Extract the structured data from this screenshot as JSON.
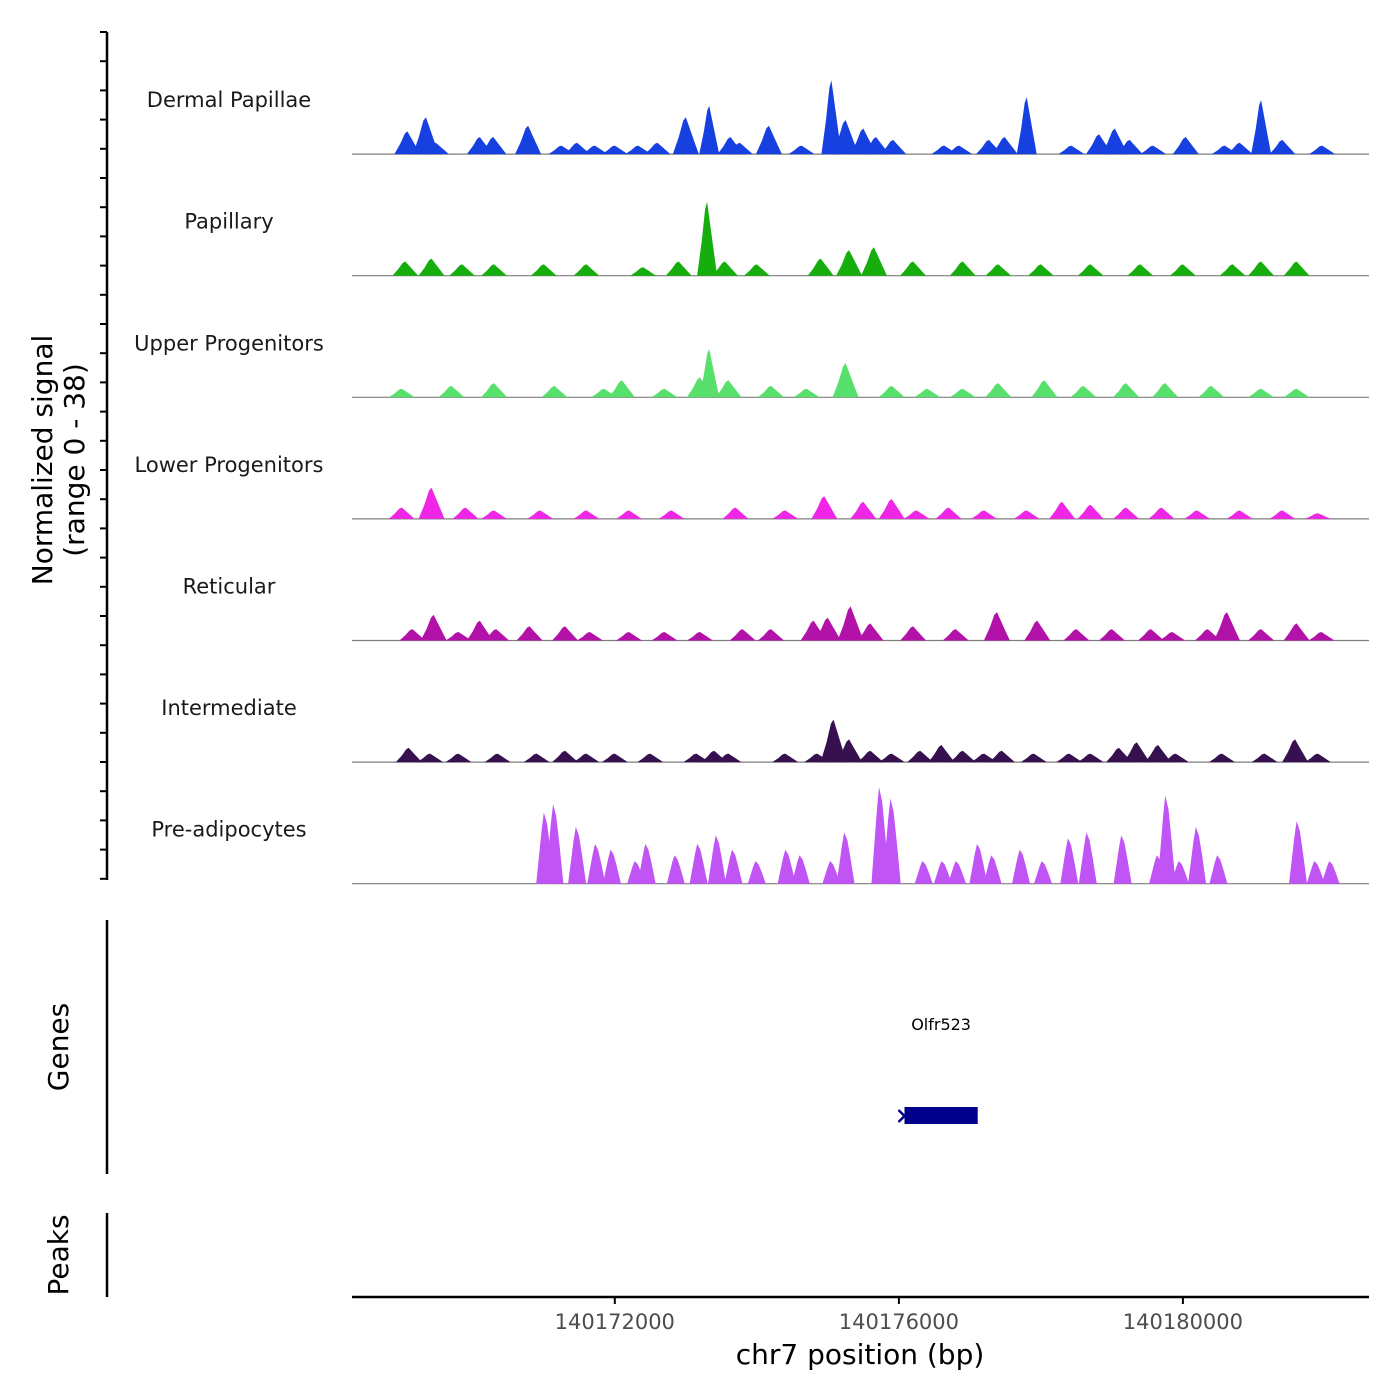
{
  "chart_data": {
    "type": "area",
    "chromosome": "chr7",
    "xlabel": "chr7 position (bp)",
    "ylabel_line1": "Normalized signal",
    "ylabel_line2": "(range 0 - 38)",
    "ylim": [
      0,
      38
    ],
    "xlim": [
      140168300,
      140182620
    ],
    "x_ticks": [
      140172000,
      140176000,
      140180000
    ],
    "x_tick_labels": [
      "140172000",
      "140176000",
      "140180000"
    ],
    "tracks": [
      {
        "name": "Dermal Papillae",
        "color": "#1640e0",
        "peaks": [
          [
            140169080,
            8
          ],
          [
            140169340,
            13
          ],
          [
            140169480,
            4
          ],
          [
            140170100,
            6
          ],
          [
            140170290,
            6
          ],
          [
            140170780,
            10
          ],
          [
            140171250,
            3
          ],
          [
            140171470,
            4
          ],
          [
            140171720,
            3
          ],
          [
            140172000,
            3
          ],
          [
            140172330,
            3
          ],
          [
            140172600,
            4
          ],
          [
            140173000,
            13
          ],
          [
            140173330,
            17
          ],
          [
            140173630,
            6
          ],
          [
            140173760,
            4
          ],
          [
            140174170,
            10
          ],
          [
            140174630,
            3
          ],
          [
            140175050,
            26
          ],
          [
            140175250,
            12
          ],
          [
            140175500,
            9
          ],
          [
            140175680,
            6
          ],
          [
            140175920,
            5
          ],
          [
            140176640,
            3
          ],
          [
            140176850,
            3
          ],
          [
            140177270,
            5
          ],
          [
            140177490,
            6
          ],
          [
            140177800,
            20
          ],
          [
            140178430,
            3
          ],
          [
            140178820,
            7
          ],
          [
            140179040,
            9
          ],
          [
            140179250,
            5
          ],
          [
            140179580,
            3
          ],
          [
            140180040,
            6
          ],
          [
            140180590,
            3
          ],
          [
            140180800,
            4
          ],
          [
            140181100,
            19
          ],
          [
            140181400,
            5
          ],
          [
            140181960,
            3
          ]
        ]
      },
      {
        "name": "Papillary",
        "color": "#16ae0d",
        "peaks": [
          [
            140169050,
            5
          ],
          [
            140169420,
            6
          ],
          [
            140169850,
            4
          ],
          [
            140170300,
            4
          ],
          [
            140171000,
            4
          ],
          [
            140171600,
            4
          ],
          [
            140172400,
            3
          ],
          [
            140172900,
            5
          ],
          [
            140173300,
            26
          ],
          [
            140173550,
            5
          ],
          [
            140174000,
            4
          ],
          [
            140174900,
            6
          ],
          [
            140175300,
            9
          ],
          [
            140175650,
            10
          ],
          [
            140176200,
            5
          ],
          [
            140176900,
            5
          ],
          [
            140177400,
            4
          ],
          [
            140178000,
            4
          ],
          [
            140178700,
            4
          ],
          [
            140179400,
            4
          ],
          [
            140180000,
            4
          ],
          [
            140180700,
            4
          ],
          [
            140181100,
            5
          ],
          [
            140181600,
            5
          ]
        ]
      },
      {
        "name": "Upper Progenitors",
        "color": "#57e06b",
        "peaks": [
          [
            140169000,
            3
          ],
          [
            140169700,
            4
          ],
          [
            140170300,
            5
          ],
          [
            140171150,
            4
          ],
          [
            140171850,
            3
          ],
          [
            140172100,
            6
          ],
          [
            140172700,
            3
          ],
          [
            140173200,
            7
          ],
          [
            140173330,
            17
          ],
          [
            140173600,
            6
          ],
          [
            140174200,
            4
          ],
          [
            140174700,
            3
          ],
          [
            140175250,
            12
          ],
          [
            140175900,
            4
          ],
          [
            140176400,
            3
          ],
          [
            140176900,
            3
          ],
          [
            140177400,
            5
          ],
          [
            140178050,
            6
          ],
          [
            140178600,
            4
          ],
          [
            140179200,
            5
          ],
          [
            140179750,
            5
          ],
          [
            140180400,
            4
          ],
          [
            140181100,
            3
          ],
          [
            140181600,
            3
          ]
        ]
      },
      {
        "name": "Lower Progenitors",
        "color": "#f026e6",
        "peaks": [
          [
            140169000,
            4
          ],
          [
            140169420,
            11
          ],
          [
            140169900,
            4
          ],
          [
            140170300,
            3
          ],
          [
            140170950,
            3
          ],
          [
            140171600,
            3
          ],
          [
            140172200,
            3
          ],
          [
            140172800,
            3
          ],
          [
            140173700,
            4
          ],
          [
            140174400,
            3
          ],
          [
            140174950,
            8
          ],
          [
            140175500,
            6
          ],
          [
            140175900,
            7
          ],
          [
            140176250,
            3
          ],
          [
            140176700,
            4
          ],
          [
            140177200,
            3
          ],
          [
            140177800,
            3
          ],
          [
            140178300,
            6
          ],
          [
            140178700,
            5
          ],
          [
            140179200,
            4
          ],
          [
            140179700,
            4
          ],
          [
            140180200,
            3
          ],
          [
            140180800,
            3
          ],
          [
            140181400,
            3
          ],
          [
            140181900,
            2
          ]
        ]
      },
      {
        "name": "Reticular",
        "color": "#b212a7",
        "peaks": [
          [
            140169150,
            4
          ],
          [
            140169450,
            9
          ],
          [
            140169800,
            3
          ],
          [
            140170100,
            7
          ],
          [
            140170330,
            4
          ],
          [
            140170800,
            5
          ],
          [
            140171300,
            5
          ],
          [
            140171650,
            3
          ],
          [
            140172200,
            3
          ],
          [
            140172700,
            3
          ],
          [
            140173200,
            3
          ],
          [
            140173800,
            4
          ],
          [
            140174200,
            4
          ],
          [
            140174800,
            7
          ],
          [
            140175000,
            8
          ],
          [
            140175320,
            12
          ],
          [
            140175600,
            6
          ],
          [
            140176200,
            5
          ],
          [
            140176800,
            4
          ],
          [
            140177380,
            10
          ],
          [
            140177950,
            7
          ],
          [
            140178500,
            4
          ],
          [
            140179000,
            4
          ],
          [
            140179550,
            4
          ],
          [
            140179850,
            3
          ],
          [
            140180350,
            4
          ],
          [
            140180620,
            10
          ],
          [
            140181100,
            4
          ],
          [
            140181600,
            6
          ],
          [
            140181950,
            3
          ]
        ]
      },
      {
        "name": "Intermediate",
        "color": "#37104f",
        "peaks": [
          [
            140169100,
            5
          ],
          [
            140169400,
            3
          ],
          [
            140169800,
            3
          ],
          [
            140170350,
            3
          ],
          [
            140170900,
            3
          ],
          [
            140171300,
            4
          ],
          [
            140171600,
            3
          ],
          [
            140172000,
            3
          ],
          [
            140172500,
            3
          ],
          [
            140173150,
            3
          ],
          [
            140173400,
            4
          ],
          [
            140173600,
            3
          ],
          [
            140174400,
            3
          ],
          [
            140174850,
            3
          ],
          [
            140175080,
            15
          ],
          [
            140175300,
            8
          ],
          [
            140175600,
            4
          ],
          [
            140175900,
            3
          ],
          [
            140176300,
            4
          ],
          [
            140176600,
            6
          ],
          [
            140176900,
            4
          ],
          [
            140177200,
            3
          ],
          [
            140177450,
            4
          ],
          [
            140177900,
            3
          ],
          [
            140178400,
            3
          ],
          [
            140178700,
            3
          ],
          [
            140179100,
            5
          ],
          [
            140179350,
            7
          ],
          [
            140179650,
            6
          ],
          [
            140179900,
            3
          ],
          [
            140180550,
            3
          ],
          [
            140181150,
            3
          ],
          [
            140181580,
            8
          ],
          [
            140181900,
            3
          ]
        ]
      },
      {
        "name": "Pre-adipocytes",
        "color": "#c154f4",
        "peaks": [
          [
            140171020,
            25
          ],
          [
            140171150,
            28
          ],
          [
            140171470,
            20
          ],
          [
            140171740,
            14
          ],
          [
            140171960,
            12
          ],
          [
            140172300,
            8
          ],
          [
            140172450,
            14
          ],
          [
            140172860,
            10
          ],
          [
            140173180,
            14
          ],
          [
            140173440,
            17
          ],
          [
            140173670,
            12
          ],
          [
            140174000,
            8
          ],
          [
            140174420,
            12
          ],
          [
            140174620,
            10
          ],
          [
            140175050,
            8
          ],
          [
            140175250,
            18
          ],
          [
            140175740,
            34
          ],
          [
            140175900,
            30
          ],
          [
            140176350,
            8
          ],
          [
            140176620,
            8
          ],
          [
            140176820,
            8
          ],
          [
            140177120,
            14
          ],
          [
            140177320,
            10
          ],
          [
            140177720,
            12
          ],
          [
            140178030,
            8
          ],
          [
            140178400,
            16
          ],
          [
            140178660,
            18
          ],
          [
            140179150,
            17
          ],
          [
            140179650,
            10
          ],
          [
            140179770,
            31
          ],
          [
            140179960,
            8
          ],
          [
            140180200,
            20
          ],
          [
            140180500,
            10
          ],
          [
            140181620,
            22
          ],
          [
            140181870,
            8
          ],
          [
            140182080,
            8
          ]
        ]
      }
    ],
    "genes": [
      {
        "name": "Olfr523",
        "start": 140176080,
        "end": 140177110,
        "strand": "-"
      }
    ],
    "gene_track_label": "Genes",
    "peak_track_label": "Peaks",
    "peaks_regions": []
  }
}
